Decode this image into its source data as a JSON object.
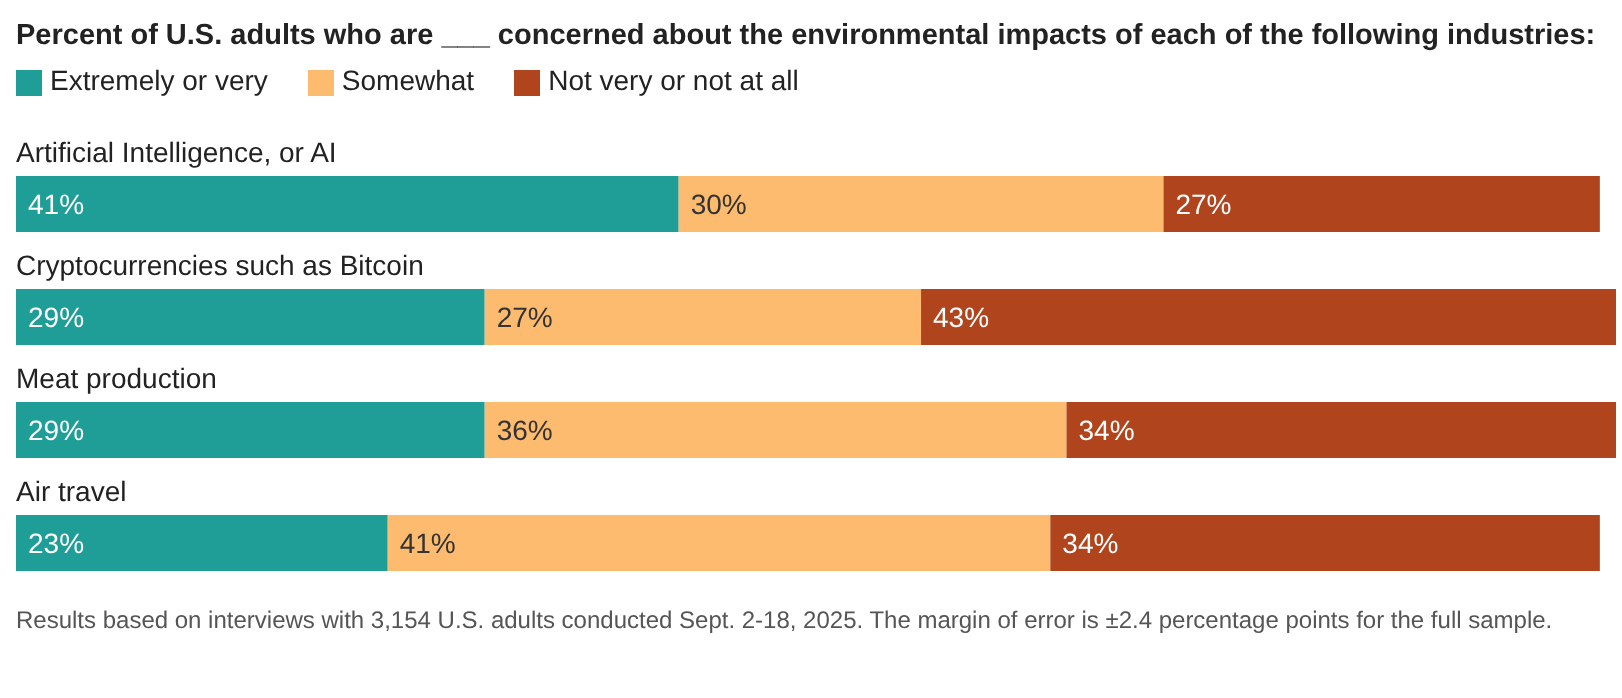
{
  "chart_data": {
    "type": "bar",
    "orientation": "horizontal",
    "stacked": true,
    "title": "Percent of U.S. adults who are ___ concerned about the environmental impacts of each of the following industries:",
    "categories": [
      "Artificial Intelligence, or AI",
      "Cryptocurrencies such as Bitcoin",
      "Meat production",
      "Air travel"
    ],
    "series": [
      {
        "name": "Extremely or very",
        "color": "#1f9e98",
        "values": [
          41,
          29,
          29,
          23
        ],
        "value_labels": [
          "41%",
          "29%",
          "29%",
          "23%"
        ]
      },
      {
        "name": "Somewhat",
        "color": "#fdbb6f",
        "values": [
          30,
          27,
          36,
          41
        ],
        "value_labels": [
          "30%",
          "27%",
          "36%",
          "41%"
        ]
      },
      {
        "name": "Not very or not at all",
        "color": "#b0441c",
        "values": [
          27,
          43,
          34,
          34
        ],
        "value_labels": [
          "27%",
          "43%",
          "34%",
          "34%"
        ]
      }
    ],
    "legend": "top left",
    "annotations": [
      "Results based on interviews with 3,154 U.S. adults conducted Sept. 2-18, 2025. The margin of error is ±2.4 percentage points for the full sample."
    ]
  }
}
